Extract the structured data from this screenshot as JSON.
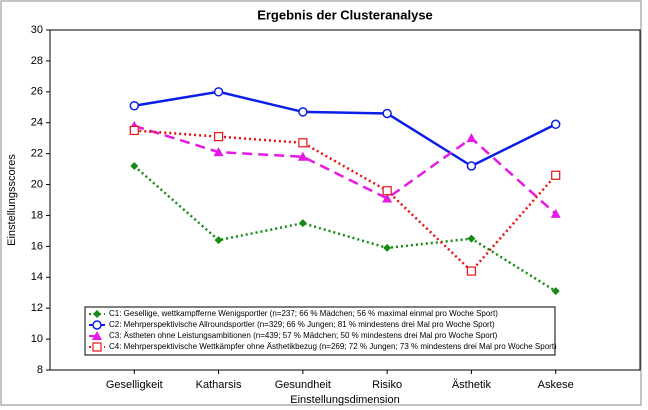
{
  "chart_data": {
    "type": "line",
    "title": "Ergebnis der Clusteranalyse",
    "x_label": "Einstellungsdimension",
    "y_label": "Einstellungsscores",
    "categories": [
      "Geselligkeit",
      "Katharsis",
      "Gesundheit",
      "Risiko",
      "Ästhetik",
      "Askese"
    ],
    "ylim": [
      8,
      30
    ],
    "yticks": [
      8,
      10,
      12,
      14,
      16,
      18,
      20,
      22,
      24,
      26,
      28,
      30
    ],
    "grid": false,
    "legend": "lower left",
    "series": [
      {
        "name": "C1: Gesellige, wettkampfferne Wenigsportler (n=237; 66 % Mädchen; 56 % maximal einmal pro Woche Sport)",
        "color": "#168c16",
        "marker": "diamond",
        "dash": "dotted",
        "values": [
          21.2,
          16.4,
          17.5,
          15.9,
          16.5,
          13.1
        ]
      },
      {
        "name": "C2: Mehrperspektivische Allroundsportler (n=329; 66 % Jungen; 81 % mindestens drei Mal pro Woche Sport)",
        "color": "#0a1ee6",
        "marker": "circle",
        "dash": "solid",
        "values": [
          25.1,
          26.0,
          24.7,
          24.6,
          21.2,
          23.9
        ]
      },
      {
        "name": "C3: Ästheten ohne Leistungsambitionen (n=439; 57 % Mädchen; 50 % mindestens drei Mal pro Woche Sport)",
        "color": "#e619e6",
        "marker": "triangle",
        "dash": "dashed",
        "values": [
          23.8,
          22.1,
          21.8,
          19.1,
          23.0,
          18.1
        ]
      },
      {
        "name": "C4: Mehrperspektivische Wettkämpfer ohne Ästhetikbezug (n=269; 72 % Jungen; 73 % mindestens drei Mal pro Woche Sport)",
        "color": "#e61414",
        "marker": "square",
        "dash": "dotted",
        "values": [
          23.5,
          23.1,
          22.7,
          19.6,
          14.4,
          20.6
        ]
      }
    ]
  }
}
